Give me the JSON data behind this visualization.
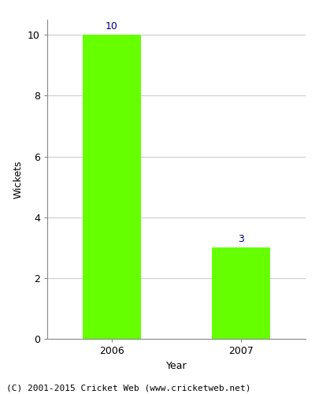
{
  "categories": [
    "2006",
    "2007"
  ],
  "values": [
    10,
    3
  ],
  "bar_color": "#66ff00",
  "bar_width": 0.45,
  "xlabel": "Year",
  "ylabel": "Wickets",
  "ylim": [
    0,
    10.5
  ],
  "yticks": [
    0,
    2,
    4,
    6,
    8,
    10
  ],
  "label_color": "#00008b",
  "label_fontsize": 9,
  "axis_label_fontsize": 9,
  "tick_fontsize": 9,
  "grid_color": "#cccccc",
  "background_color": "#ffffff",
  "footer_text": "(C) 2001-2015 Cricket Web (www.cricketweb.net)",
  "footer_fontsize": 8
}
